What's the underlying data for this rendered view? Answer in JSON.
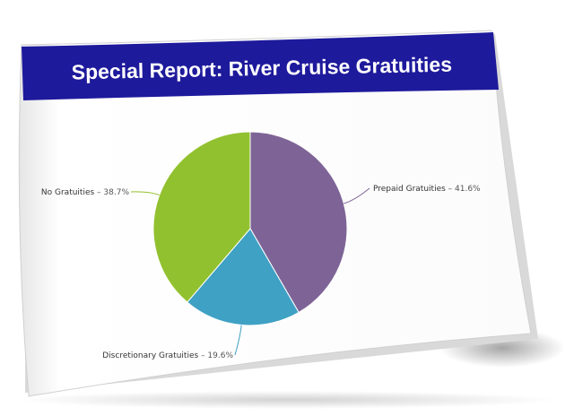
{
  "report": {
    "title": "Special Report: River Cruise Gratuities",
    "banner_color": "#1e1a9c"
  },
  "chart_data": {
    "type": "pie",
    "title": "",
    "slices": [
      {
        "label": "Prepaid Gratuities",
        "value": 41.6,
        "value_label": "41.6%",
        "color": "#7e6496"
      },
      {
        "label": "Discretionary Gratuities",
        "value": 19.6,
        "value_label": "19.6%",
        "color": "#3fa1c4"
      },
      {
        "label": "No Gratuities",
        "value": 38.7,
        "value_label": "38.7%",
        "color": "#92c12f"
      }
    ],
    "start_angle_deg": 0,
    "direction": "clockwise",
    "legend": "none",
    "data_labels": "outside with leader lines"
  }
}
